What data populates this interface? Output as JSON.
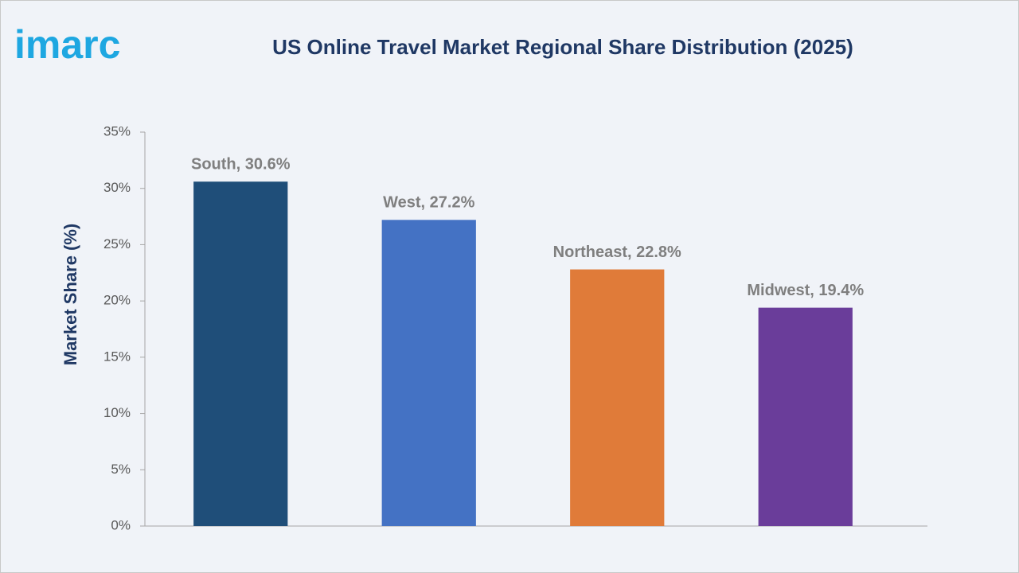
{
  "logo": "imarc",
  "chart_data": {
    "type": "bar",
    "title": "US Online Travel Market Regional Share Distribution (2025)",
    "y_label": "Market Share (%)",
    "categories": [
      "South",
      "West",
      "Northeast",
      "Midwest"
    ],
    "values": [
      30.6,
      27.2,
      22.8,
      19.4
    ],
    "value_labels": [
      "South, 30.6%",
      "West, 27.2%",
      "Northeast, 22.8%",
      "Midwest, 19.4%"
    ],
    "colors": [
      "#1f4e79",
      "#4472c4",
      "#e07b39",
      "#6a3d9a"
    ],
    "ylim": [
      0,
      35
    ],
    "yticks": [
      {
        "value": 0,
        "label": "0%"
      },
      {
        "value": 5,
        "label": "5%"
      },
      {
        "value": 10,
        "label": "10%"
      },
      {
        "value": 15,
        "label": "15%"
      },
      {
        "value": 20,
        "label": "20%"
      },
      {
        "value": 25,
        "label": "25%"
      },
      {
        "value": 30,
        "label": "30%"
      },
      {
        "value": 35,
        "label": "35%"
      }
    ],
    "grid": false
  }
}
